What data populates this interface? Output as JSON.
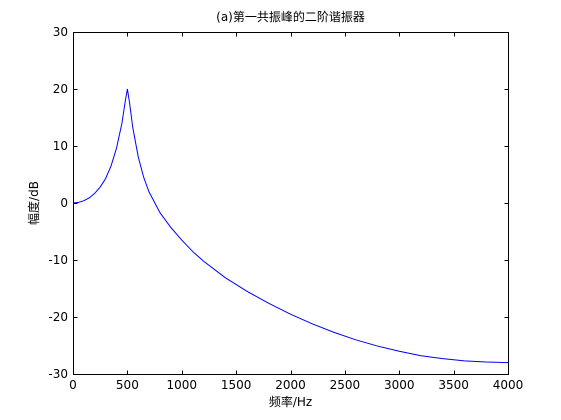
{
  "chart_data": {
    "type": "line",
    "title": "(a)第一共振峰的二阶谐振器",
    "xlabel": "频率/Hz",
    "ylabel": "幅度/dB",
    "xlim": [
      0,
      4000
    ],
    "ylim": [
      -30,
      30
    ],
    "xticks": [
      0,
      500,
      1000,
      1500,
      2000,
      2500,
      3000,
      3500,
      4000
    ],
    "yticks": [
      -30,
      -20,
      -10,
      0,
      10,
      20,
      30
    ],
    "grid": false,
    "line_color": "#0000ff",
    "series": [
      {
        "x": [
          0,
          50,
          100,
          150,
          200,
          250,
          300,
          350,
          400,
          450,
          480,
          500,
          520,
          550,
          600,
          650,
          700,
          800,
          900,
          1000,
          1100,
          1200,
          1400,
          1600,
          1800,
          2000,
          2200,
          2400,
          2600,
          2800,
          3000,
          3200,
          3400,
          3600,
          3800,
          4000
        ],
        "values": [
          0.0,
          0.1,
          0.4,
          0.9,
          1.7,
          2.8,
          4.3,
          6.5,
          9.6,
          14.0,
          17.8,
          20.0,
          17.6,
          13.2,
          8.1,
          4.5,
          1.9,
          -1.7,
          -4.3,
          -6.5,
          -8.5,
          -10.2,
          -13.1,
          -15.5,
          -17.6,
          -19.5,
          -21.2,
          -22.7,
          -24.0,
          -25.1,
          -26.0,
          -26.8,
          -27.3,
          -27.7,
          -27.9,
          -28.0
        ]
      }
    ]
  }
}
